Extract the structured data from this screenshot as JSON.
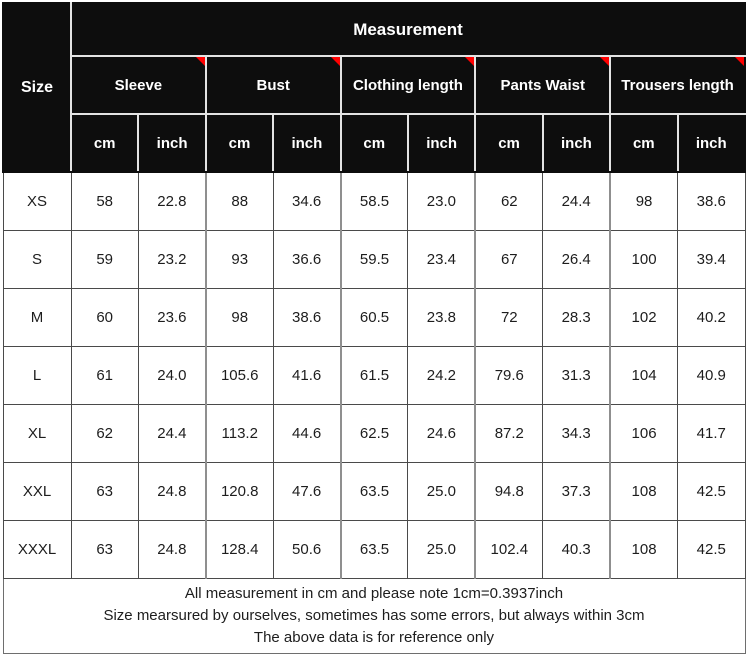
{
  "colors": {
    "header_bg": "#0d0d0d",
    "header_text": "#ffffff",
    "header_grid": "#e3e3e3",
    "body_grid": "#4a4a4a",
    "group_divider": "#8f8f8f",
    "comment_marker": "#ff0000",
    "body_text": "#1d1d1d",
    "page_bg": "#ffffff"
  },
  "chart_data": {
    "type": "table",
    "title": "Measurement",
    "corner_header": "Size",
    "groups": [
      "Sleeve",
      "Bust",
      "Clothing length",
      "Pants Waist",
      "Trousers length"
    ],
    "units": [
      "cm",
      "inch"
    ],
    "columns": [
      "Size",
      "Sleeve cm",
      "Sleeve inch",
      "Bust cm",
      "Bust inch",
      "Clothing length cm",
      "Clothing length inch",
      "Pants Waist cm",
      "Pants Waist inch",
      "Trousers length cm",
      "Trousers length inch"
    ],
    "rows": [
      {
        "size": "XS",
        "values": [
          "58",
          "22.8",
          "88",
          "34.6",
          "58.5",
          "23.0",
          "62",
          "24.4",
          "98",
          "38.6"
        ]
      },
      {
        "size": "S",
        "values": [
          "59",
          "23.2",
          "93",
          "36.6",
          "59.5",
          "23.4",
          "67",
          "26.4",
          "100",
          "39.4"
        ]
      },
      {
        "size": "M",
        "values": [
          "60",
          "23.6",
          "98",
          "38.6",
          "60.5",
          "23.8",
          "72",
          "28.3",
          "102",
          "40.2"
        ]
      },
      {
        "size": "L",
        "values": [
          "61",
          "24.0",
          "105.6",
          "41.6",
          "61.5",
          "24.2",
          "79.6",
          "31.3",
          "104",
          "40.9"
        ]
      },
      {
        "size": "XL",
        "values": [
          "62",
          "24.4",
          "113.2",
          "44.6",
          "62.5",
          "24.6",
          "87.2",
          "34.3",
          "106",
          "41.7"
        ]
      },
      {
        "size": "XXL",
        "values": [
          "63",
          "24.8",
          "120.8",
          "47.6",
          "63.5",
          "25.0",
          "94.8",
          "37.3",
          "108",
          "42.5"
        ]
      },
      {
        "size": "XXXL",
        "values": [
          "63",
          "24.8",
          "128.4",
          "50.6",
          "63.5",
          "25.0",
          "102.4",
          "40.3",
          "108",
          "42.5"
        ]
      }
    ],
    "footer_lines": [
      "All measurement in cm and please note 1cm=0.3937inch",
      "Size mearsured by ourselves, sometimes has some errors, but always within 3cm",
      "The above data is for reference only"
    ]
  }
}
